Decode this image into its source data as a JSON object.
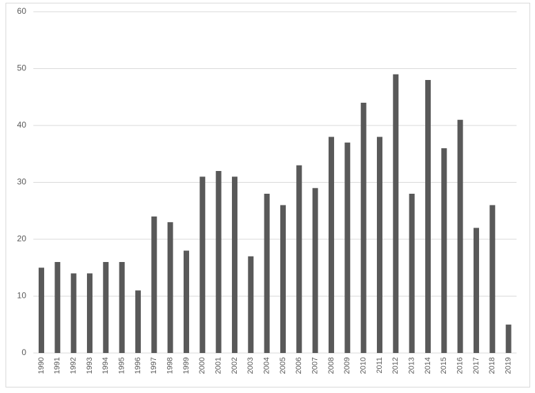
{
  "chart_data": {
    "type": "bar",
    "categories": [
      "1990",
      "1991",
      "1992",
      "1993",
      "1994",
      "1995",
      "1996",
      "1997",
      "1998",
      "1999",
      "2000",
      "2001",
      "2002",
      "2003",
      "2004",
      "2005",
      "2006",
      "2007",
      "2008",
      "2009",
      "2010",
      "2011",
      "2012",
      "2013",
      "2014",
      "2015",
      "2016",
      "2017",
      "2018",
      "2019"
    ],
    "values": [
      15,
      16,
      14,
      14,
      16,
      16,
      11,
      24,
      23,
      18,
      31,
      32,
      31,
      17,
      28,
      26,
      33,
      29,
      38,
      37,
      44,
      38,
      49,
      28,
      48,
      36,
      41,
      22,
      26,
      5
    ],
    "color": "#595959",
    "ylim": [
      0,
      60
    ],
    "yticks": [
      0,
      10,
      20,
      30,
      40,
      50,
      60
    ],
    "grid": true
  }
}
